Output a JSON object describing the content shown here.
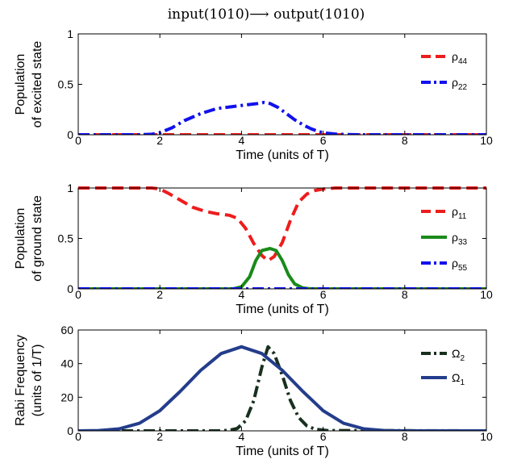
{
  "figure_title": "input(1010)⟶ output(1010)",
  "colors": {
    "red": "#ee1c1c",
    "blue": "#1111ee",
    "green": "#1a8a1a",
    "dark_green": "#18301f",
    "navy": "#243d8c"
  },
  "chart_data": [
    {
      "type": "line",
      "xlabel": "Time (units of T)",
      "ylabel": [
        "Population",
        "of excited state"
      ],
      "xlim": [
        0,
        10
      ],
      "ylim": [
        0,
        1
      ],
      "xticks": [
        "0",
        "2",
        "4",
        "6",
        "8",
        "10"
      ],
      "yticks": [
        "0",
        "0.5",
        "1"
      ],
      "grid": false,
      "legend_position": "right",
      "series": [
        {
          "name": "ρ44",
          "symbol": "ρ",
          "sub": "44",
          "color": "#ee1c1c",
          "style": "dash",
          "x": [
            0,
            10
          ],
          "y": [
            0,
            0
          ]
        },
        {
          "name": "ρ22",
          "symbol": "ρ",
          "sub": "22",
          "color": "#1111ee",
          "style": "dashdot",
          "x": [
            0,
            1.5,
            1.8,
            2.0,
            2.3,
            2.6,
            3.0,
            3.4,
            3.8,
            4.2,
            4.4,
            4.55,
            4.7,
            4.9,
            5.1,
            5.3,
            5.5,
            5.7,
            5.9,
            6.1,
            6.3,
            6.6,
            7.0,
            10
          ],
          "y": [
            0,
            0,
            0.005,
            0.02,
            0.07,
            0.14,
            0.21,
            0.26,
            0.28,
            0.3,
            0.31,
            0.32,
            0.31,
            0.27,
            0.21,
            0.15,
            0.1,
            0.06,
            0.03,
            0.015,
            0.007,
            0.002,
            0,
            0
          ]
        }
      ]
    },
    {
      "type": "line",
      "xlabel": "Time (units of T)",
      "ylabel": [
        "Population",
        "of ground state"
      ],
      "xlim": [
        0,
        10
      ],
      "ylim": [
        0,
        1
      ],
      "xticks": [
        "0",
        "2",
        "4",
        "6",
        "8",
        "10"
      ],
      "yticks": [
        "0",
        "0.5",
        "1"
      ],
      "grid": false,
      "legend_position": "right",
      "series": [
        {
          "name": "ρ11",
          "symbol": "ρ",
          "sub": "11",
          "color": "#ee1c1c",
          "style": "dash",
          "x": [
            0,
            1.8,
            2.0,
            2.2,
            2.5,
            2.8,
            3.1,
            3.4,
            3.7,
            3.9,
            4.1,
            4.3,
            4.5,
            4.65,
            4.8,
            5.0,
            5.2,
            5.4,
            5.6,
            5.8,
            6.0,
            6.3,
            7.0,
            10
          ],
          "y": [
            1.0,
            1.0,
            0.99,
            0.95,
            0.88,
            0.81,
            0.77,
            0.745,
            0.73,
            0.7,
            0.6,
            0.45,
            0.33,
            0.28,
            0.32,
            0.46,
            0.68,
            0.86,
            0.94,
            0.975,
            0.99,
            1.0,
            1.0,
            1.0
          ]
        },
        {
          "name": "ρ33",
          "symbol": "ρ",
          "sub": "33",
          "color": "#1a8a1a",
          "style": "solid",
          "x": [
            0,
            3.8,
            4.0,
            4.2,
            4.35,
            4.5,
            4.7,
            4.85,
            5.0,
            5.15,
            5.3,
            5.5,
            5.7,
            10
          ],
          "y": [
            0,
            0,
            0.02,
            0.12,
            0.28,
            0.38,
            0.4,
            0.38,
            0.28,
            0.14,
            0.05,
            0.01,
            0,
            0
          ]
        },
        {
          "name": "ρ55",
          "symbol": "ρ",
          "sub": "55",
          "color": "#1111ee",
          "style": "dashdot",
          "x": [
            0,
            10
          ],
          "y": [
            0,
            0
          ]
        }
      ]
    },
    {
      "type": "line",
      "xlabel": "Time (units of T)",
      "ylabel": [
        "Rabi Frequency",
        "(units of 1/T)"
      ],
      "xlim": [
        0,
        10
      ],
      "ylim": [
        0,
        60
      ],
      "xticks": [
        "0",
        "2",
        "4",
        "6",
        "8",
        "10"
      ],
      "yticks": [
        "0",
        "20",
        "40",
        "60"
      ],
      "grid": false,
      "legend_position": "right",
      "series": [
        {
          "name": "Ω2",
          "symbol": "Ω",
          "sub": "2",
          "color": "#18301f",
          "style": "dashdot",
          "x": [
            0,
            3.4,
            3.7,
            3.9,
            4.1,
            4.3,
            4.5,
            4.65,
            4.8,
            5.0,
            5.2,
            5.4,
            5.6,
            5.8,
            6.1,
            10
          ],
          "y": [
            0,
            0,
            0.3,
            1.5,
            6,
            18,
            38,
            50,
            46,
            33,
            18,
            8,
            3,
            1,
            0.2,
            0
          ]
        },
        {
          "name": "Ω1",
          "symbol": "Ω",
          "sub": "1",
          "color": "#243d8c",
          "style": "solid",
          "x": [
            0,
            0.5,
            1.0,
            1.5,
            2.0,
            2.5,
            3.0,
            3.5,
            4.0,
            4.5,
            5.0,
            5.5,
            6.0,
            6.5,
            7.0,
            7.5,
            8.0,
            8.5,
            9.0,
            10
          ],
          "y": [
            0,
            0.2,
            1.2,
            4.5,
            12,
            23.5,
            36,
            46,
            50,
            46,
            36,
            23.5,
            12,
            4.5,
            1.2,
            0.2,
            0,
            0,
            0,
            0
          ]
        }
      ]
    }
  ]
}
